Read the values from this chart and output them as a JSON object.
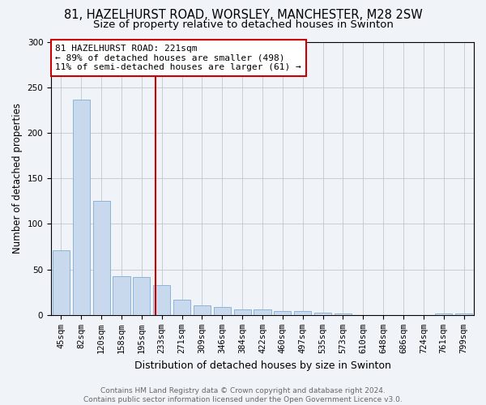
{
  "title1": "81, HAZELHURST ROAD, WORSLEY, MANCHESTER, M28 2SW",
  "title2": "Size of property relative to detached houses in Swinton",
  "xlabel": "Distribution of detached houses by size in Swinton",
  "ylabel": "Number of detached properties",
  "categories": [
    "45sqm",
    "82sqm",
    "120sqm",
    "158sqm",
    "195sqm",
    "233sqm",
    "271sqm",
    "309sqm",
    "346sqm",
    "384sqm",
    "422sqm",
    "460sqm",
    "497sqm",
    "535sqm",
    "573sqm",
    "610sqm",
    "648sqm",
    "686sqm",
    "724sqm",
    "761sqm",
    "799sqm"
  ],
  "values": [
    71,
    236,
    125,
    43,
    42,
    33,
    17,
    11,
    9,
    6,
    6,
    4,
    4,
    3,
    2,
    0,
    0,
    0,
    0,
    2,
    2
  ],
  "bar_color": "#c8d9ee",
  "bar_edge_color": "#8ab4d8",
  "vline_color": "#cc0000",
  "annotation_line1": "81 HAZELHURST ROAD: 221sqm",
  "annotation_line2": "← 89% of detached houses are smaller (498)",
  "annotation_line3": "11% of semi-detached houses are larger (61) →",
  "annotation_box_color": "#ffffff",
  "annotation_box_edge_color": "#cc0000",
  "ylim": [
    0,
    300
  ],
  "yticks": [
    0,
    50,
    100,
    150,
    200,
    250,
    300
  ],
  "footer1": "Contains HM Land Registry data © Crown copyright and database right 2024.",
  "footer2": "Contains public sector information licensed under the Open Government Licence v3.0.",
  "title1_fontsize": 10.5,
  "title2_fontsize": 9.5,
  "xlabel_fontsize": 9,
  "ylabel_fontsize": 8.5,
  "footer_fontsize": 6.5,
  "tick_fontsize": 7.5,
  "annotation_fontsize": 8
}
